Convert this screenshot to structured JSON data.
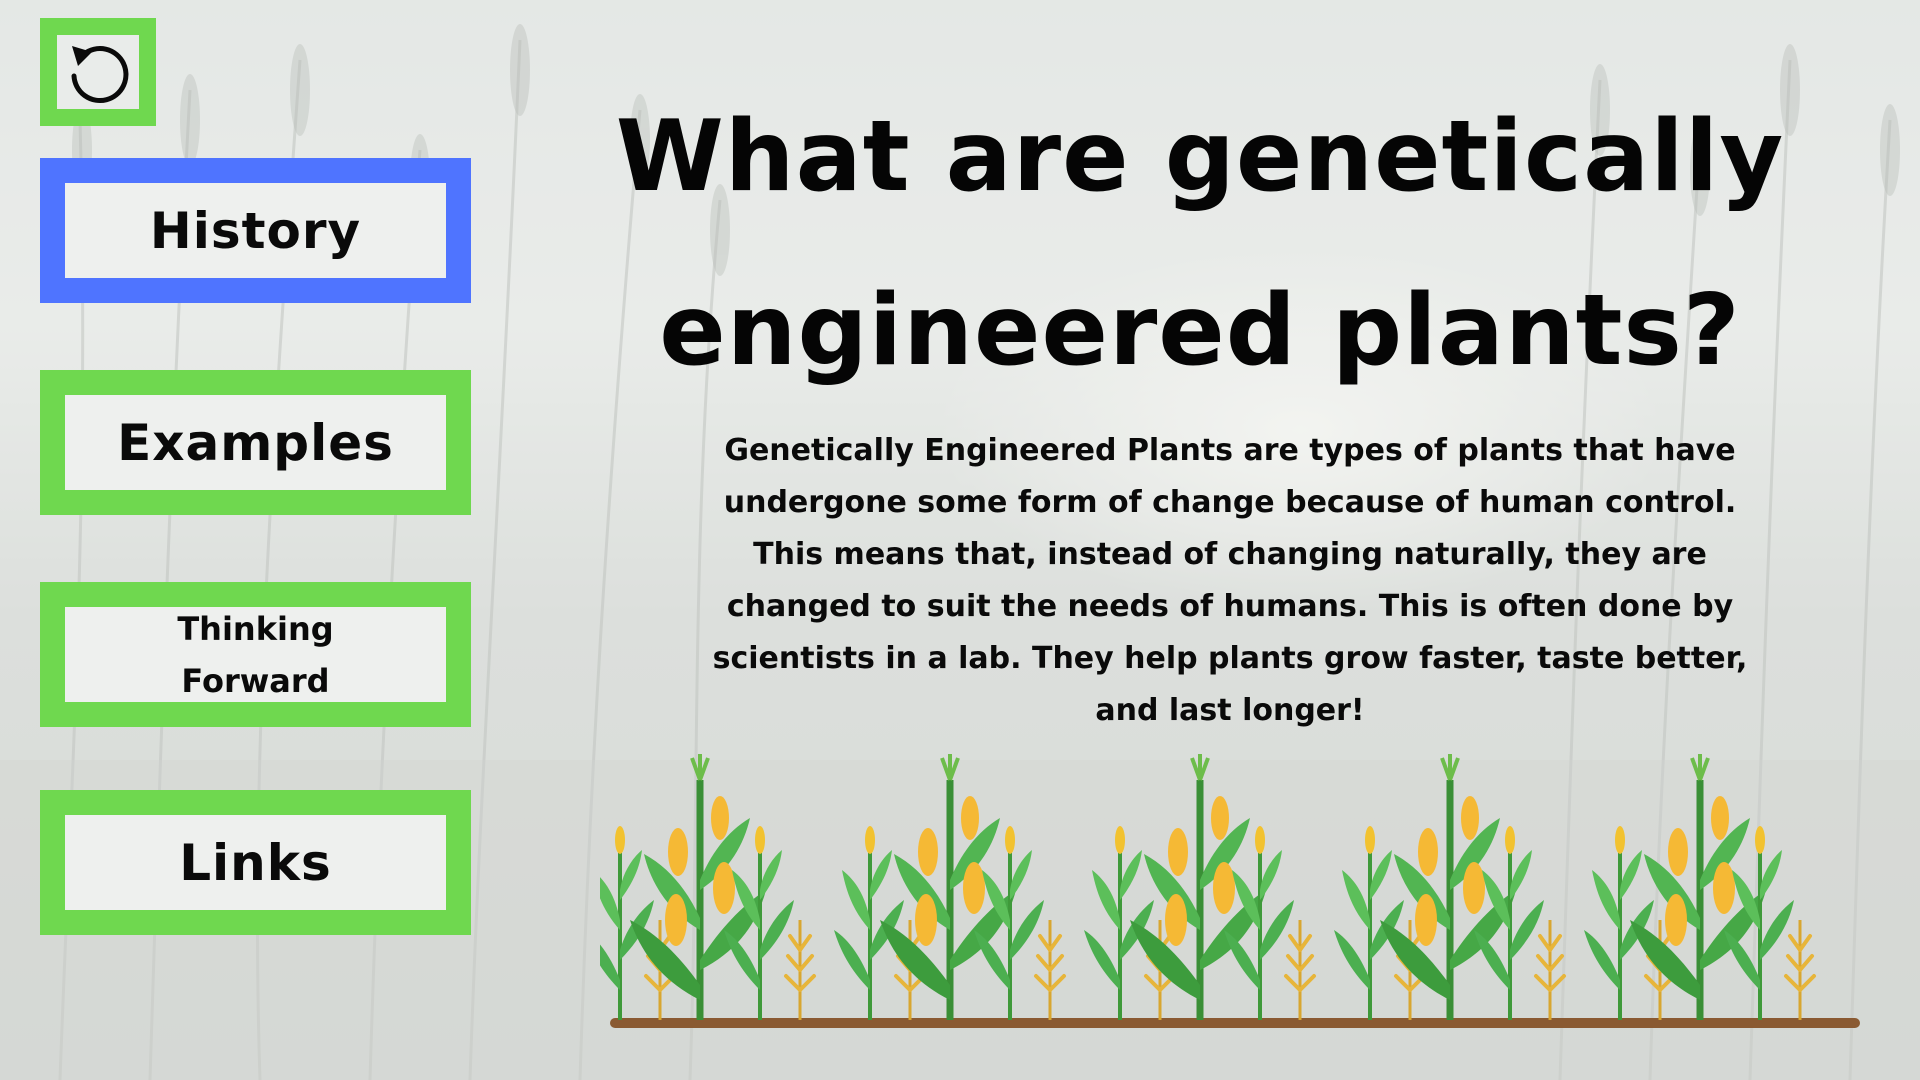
{
  "reset_button": {
    "icon": "reset-icon"
  },
  "nav": {
    "items": [
      {
        "label": "History",
        "active": true
      },
      {
        "label": "Examples",
        "active": false
      },
      {
        "label": "Thinking\nForward",
        "active": false
      },
      {
        "label": "Links",
        "active": false
      }
    ]
  },
  "main": {
    "title": "What are genetically engineered plants?",
    "description": "Genetically Engineered Plants are types of plants that have undergone some form of change because of human control. This means that, instead of changing naturally, they are changed to suit the needs of humans. This is often done by scientists in a lab. They help plants grow faster, taste better, and last longer!"
  },
  "colors": {
    "accent_green": "#6fd84f",
    "active_blue": "#4f74ff",
    "text": "#0a0a0a"
  },
  "illustration": {
    "icon": "corn-plants-illustration"
  }
}
